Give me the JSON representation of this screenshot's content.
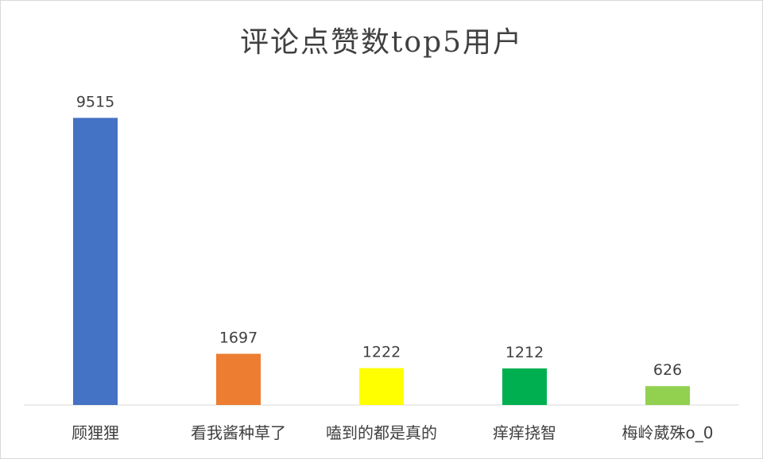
{
  "chart_data": {
    "type": "bar",
    "title": "评论点赞数top5用户",
    "categories": [
      "顾狸狸",
      "看我酱种草了",
      "嗑到的都是真的",
      "痒痒挠智",
      "梅岭葳殊o_0"
    ],
    "values": [
      9515,
      1697,
      1222,
      1212,
      626
    ],
    "colors": [
      "#4472c4",
      "#ed7d31",
      "#ffff00",
      "#00b050",
      "#92d050"
    ],
    "data_labels": [
      "9515",
      "1697",
      "1222",
      "1212",
      "626"
    ],
    "ylim": [
      0,
      10000
    ],
    "xlabel": "",
    "ylabel": "",
    "grid": false,
    "legend": "none"
  }
}
